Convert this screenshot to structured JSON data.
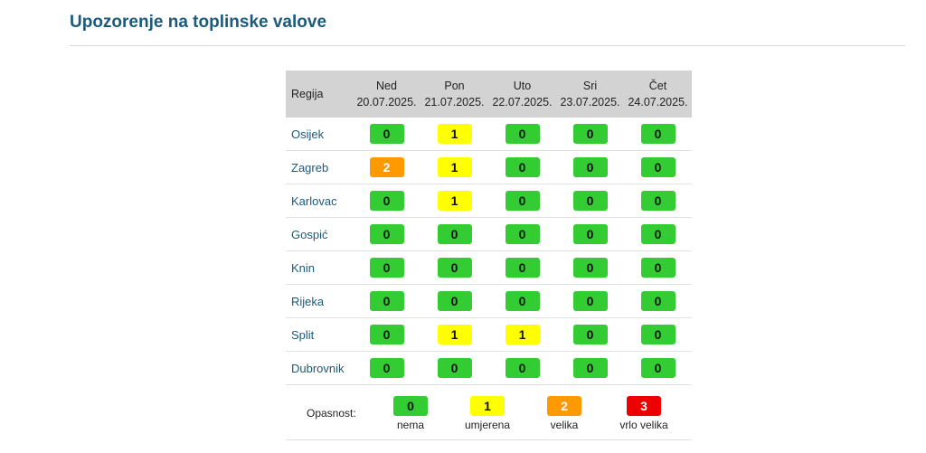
{
  "page": {
    "title": "Upozorenje na toplinske valove"
  },
  "table": {
    "region_header": "Regija",
    "days": [
      {
        "name": "Ned",
        "date": "20.07.2025."
      },
      {
        "name": "Pon",
        "date": "21.07.2025."
      },
      {
        "name": "Uto",
        "date": "22.07.2025."
      },
      {
        "name": "Sri",
        "date": "23.07.2025."
      },
      {
        "name": "Čet",
        "date": "24.07.2025."
      }
    ],
    "rows": [
      {
        "region": "Osijek",
        "levels": [
          "0",
          "1",
          "0",
          "0",
          "0"
        ]
      },
      {
        "region": "Zagreb",
        "levels": [
          "2",
          "1",
          "0",
          "0",
          "0"
        ]
      },
      {
        "region": "Karlovac",
        "levels": [
          "0",
          "1",
          "0",
          "0",
          "0"
        ]
      },
      {
        "region": "Gospić",
        "levels": [
          "0",
          "0",
          "0",
          "0",
          "0"
        ]
      },
      {
        "region": "Knin",
        "levels": [
          "0",
          "0",
          "0",
          "0",
          "0"
        ]
      },
      {
        "region": "Rijeka",
        "levels": [
          "0",
          "0",
          "0",
          "0",
          "0"
        ]
      },
      {
        "region": "Split",
        "levels": [
          "0",
          "1",
          "1",
          "0",
          "0"
        ]
      },
      {
        "region": "Dubrovnik",
        "levels": [
          "0",
          "0",
          "0",
          "0",
          "0"
        ]
      }
    ]
  },
  "legend": {
    "label": "Opasnost:",
    "items": [
      {
        "level": "0",
        "text": "nema"
      },
      {
        "level": "1",
        "text": "umjerena"
      },
      {
        "level": "2",
        "text": "velika"
      },
      {
        "level": "3",
        "text": "vrlo velika"
      }
    ]
  },
  "colors": {
    "level_0": "#33cc33",
    "level_1": "#ffff00",
    "level_2": "#ff9900",
    "level_3": "#ee0000",
    "title": "#1b5a7a",
    "header_bg": "#d3d3d3"
  }
}
